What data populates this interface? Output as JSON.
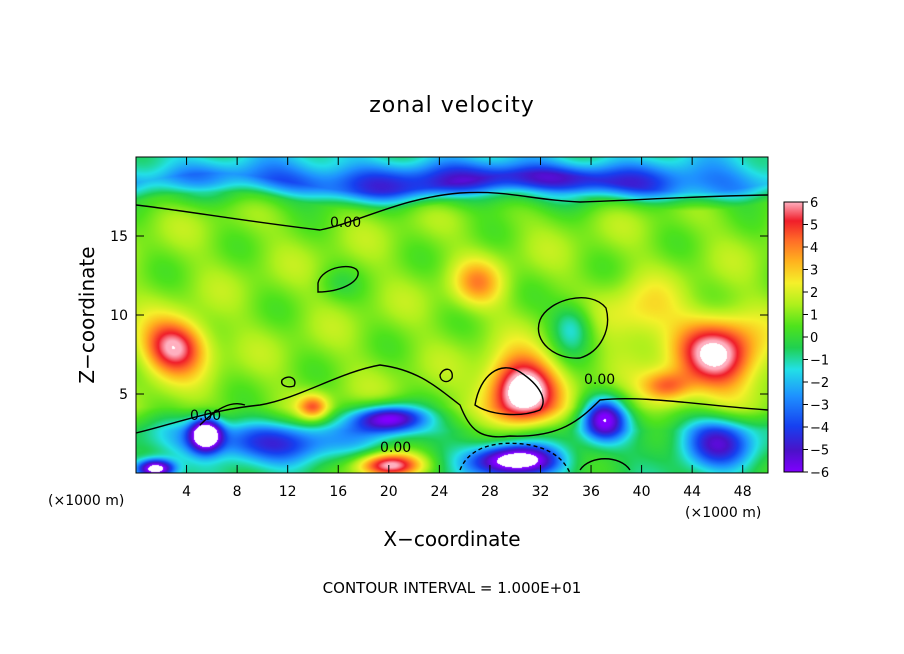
{
  "chart_data": {
    "type": "heatmap",
    "title": "zonal velocity",
    "xlabel": "X−coordinate",
    "ylabel": "Z−coordinate",
    "x_unit": "(×1000 m)",
    "y_unit": "(×1000 m)",
    "xlim": [
      0,
      50
    ],
    "ylim": [
      0,
      20
    ],
    "x_ticks": [
      "4",
      "8",
      "12",
      "16",
      "20",
      "24",
      "28",
      "32",
      "36",
      "40",
      "44",
      "48"
    ],
    "y_ticks": [
      "5",
      "10",
      "15"
    ],
    "colorbar": {
      "ticks": [
        "6",
        "5",
        "4",
        "3",
        "2",
        "1",
        "0",
        "−1",
        "−2",
        "−3",
        "−4",
        "−5",
        "−6"
      ],
      "range": [
        -6,
        6
      ]
    },
    "contour_labels": [
      "0.00",
      "0.00",
      "0.00",
      "0.00"
    ],
    "footer": "CONTOUR INTERVAL = 1.000E+01",
    "features": [
      {
        "x": 25,
        "z": 18.3,
        "sx": 30,
        "sz": 1.3,
        "v": -2.6
      },
      {
        "x": 32,
        "z": 18.6,
        "sx": 6,
        "sz": 0.9,
        "v": -1.8
      },
      {
        "x": 3,
        "z": 8,
        "sx": 2.5,
        "sz": 1.7,
        "v": 5.6
      },
      {
        "x": 30.5,
        "z": 5.2,
        "sx": 2.6,
        "sz": 2.1,
        "v": 7.5
      },
      {
        "x": 46,
        "z": 7.5,
        "sx": 3.2,
        "sz": 2.2,
        "v": 6
      },
      {
        "x": 34.5,
        "z": 9.3,
        "sx": 1.7,
        "sz": 1.6,
        "v": -2.6
      },
      {
        "x": 16,
        "z": 12,
        "sx": 1.5,
        "sz": 1.0,
        "v": -0.6
      },
      {
        "x": 20,
        "z": 3.5,
        "sx": 2.8,
        "sz": 0.9,
        "v": -6
      },
      {
        "x": 10,
        "z": 2.0,
        "sx": 7,
        "sz": 1.3,
        "v": -3.5
      },
      {
        "x": 30,
        "z": 0.8,
        "sx": 3.2,
        "sz": 1.0,
        "v": -7
      },
      {
        "x": 46,
        "z": 2.0,
        "sx": 3,
        "sz": 1.6,
        "v": -4
      },
      {
        "x": 37,
        "z": 3.5,
        "sx": 1.8,
        "sz": 1.4,
        "v": -5.5
      },
      {
        "x": 20,
        "z": 0.5,
        "sx": 2.5,
        "sz": 0.8,
        "v": 7
      },
      {
        "x": 5.5,
        "z": 2.5,
        "sx": 1.2,
        "sz": 1.0,
        "v": -7
      },
      {
        "x": 1.5,
        "z": 0.3,
        "sx": 1.5,
        "sz": 0.6,
        "v": -7
      },
      {
        "x": 14,
        "z": 4.2,
        "sx": 1.2,
        "sz": 0.8,
        "v": 3.5
      },
      {
        "x": 42,
        "z": 5.5,
        "sx": 2,
        "sz": 1.0,
        "v": 3.5
      },
      {
        "x": 27,
        "z": 12,
        "sx": 2,
        "sz": 1.5,
        "v": 2.5
      },
      {
        "x": 40,
        "z": 10,
        "sx": 3,
        "sz": 2,
        "v": 1.8
      }
    ],
    "background": {
      "base": 0.6,
      "top_z": 17.2,
      "top_drop": 2.2,
      "low_z": 4.2,
      "low_drop": 1.4
    }
  }
}
